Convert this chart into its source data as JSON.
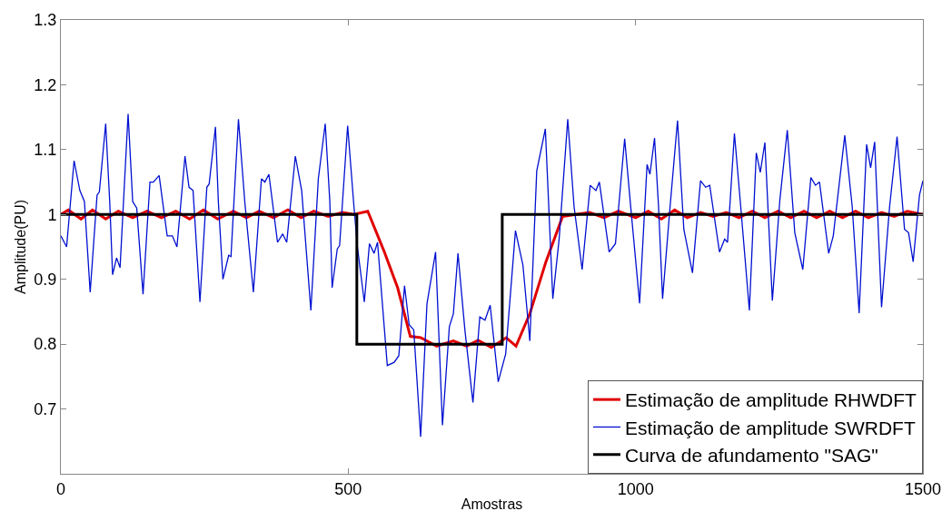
{
  "chart_data": {
    "type": "line",
    "xlabel": "Amostras",
    "ylabel": "Amplitude(PU)",
    "xlim": [
      0,
      1500
    ],
    "xticks": [
      0,
      500,
      1000,
      1500
    ],
    "ylim": [
      0.6,
      1.3
    ],
    "yticks": [
      0.7,
      0.8,
      0.9,
      1,
      1.1,
      1.2,
      1.3
    ],
    "legend": "bottom right",
    "marker": "none",
    "line_style": "solid",
    "series": [
      {
        "name": "Estimação de amplitude RHWDFT",
        "color": "#e00000",
        "x": [
          0,
          13,
          35,
          55,
          78,
          100,
          125,
          150,
          175,
          200,
          224,
          248,
          273,
          300,
          323,
          345,
          370,
          395,
          418,
          440,
          465,
          490,
          510,
          534,
          563,
          586,
          608,
          626,
          654,
          683,
          706,
          726,
          749,
          775,
          792,
          816,
          844,
          873,
          896,
          920,
          945,
          970,
          1000,
          1022,
          1045,
          1068,
          1090,
          1113,
          1135,
          1158,
          1180,
          1203,
          1225,
          1248,
          1270,
          1293,
          1315,
          1338,
          1360,
          1383,
          1405,
          1428,
          1450,
          1473,
          1500
        ],
        "values": [
          1.0,
          1.007,
          0.993,
          1.007,
          0.993,
          1.005,
          0.995,
          1.005,
          0.995,
          1.005,
          0.993,
          1.007,
          0.993,
          1.005,
          0.995,
          1.005,
          0.995,
          1.007,
          0.995,
          1.005,
          0.997,
          1.003,
          1.0,
          1.005,
          0.942,
          0.887,
          0.812,
          0.81,
          0.797,
          0.805,
          0.797,
          0.806,
          0.795,
          0.81,
          0.797,
          0.847,
          0.927,
          0.997,
          1.0,
          1.003,
          0.995,
          1.005,
          0.995,
          1.005,
          0.993,
          1.007,
          0.995,
          1.003,
          0.997,
          1.003,
          0.995,
          1.005,
          0.995,
          1.005,
          0.995,
          1.005,
          0.995,
          1.005,
          0.995,
          1.005,
          0.995,
          1.003,
          0.997,
          1.005,
          1.0
        ]
      },
      {
        "name": "Estimação de amplitude SWRDFT",
        "color": "#0010d0",
        "x": [
          0,
          10,
          23,
          33,
          41,
          51,
          63,
          67,
          78,
          85,
          90,
          97,
          103,
          117,
          125,
          132,
          143,
          155,
          161,
          171,
          185,
          194,
          202,
          216,
          223,
          230,
          242,
          254,
          258,
          269,
          274,
          282,
          292,
          296,
          309,
          320,
          335,
          349,
          355,
          362,
          377,
          386,
          393,
          408,
          419,
          435,
          448,
          460,
          468,
          472,
          481,
          485,
          499,
          510,
          516,
          528,
          537,
          545,
          551,
          568,
          580,
          588,
          598,
          606,
          614,
          626,
          637,
          652,
          664,
          676,
          683,
          691,
          703,
          717,
          729,
          738,
          747,
          761,
          774,
          791,
          804,
          816,
          828,
          843,
          856,
          867,
          882,
          893,
          907,
          921,
          931,
          937,
          954,
          965,
          981,
          991,
          1007,
          1020,
          1025,
          1033,
          1040,
          1047,
          1060,
          1073,
          1084,
          1099,
          1113,
          1122,
          1129,
          1146,
          1155,
          1160,
          1172,
          1183,
          1198,
          1210,
          1217,
          1225,
          1238,
          1251,
          1264,
          1277,
          1291,
          1305,
          1313,
          1320,
          1336,
          1344,
          1364,
          1377,
          1389,
          1402,
          1409,
          1416,
          1428,
          1442,
          1455,
          1468,
          1475,
          1483,
          1494,
          1500
        ],
        "values": [
          0.967,
          0.95,
          1.083,
          1.037,
          1.02,
          0.88,
          1.03,
          1.035,
          1.14,
          1.02,
          0.907,
          0.933,
          0.918,
          1.155,
          1.02,
          1.01,
          0.877,
          1.05,
          1.05,
          1.06,
          0.967,
          0.967,
          0.95,
          1.09,
          1.042,
          1.037,
          0.865,
          1.042,
          1.047,
          1.135,
          1.02,
          0.9,
          0.937,
          0.935,
          1.147,
          1.02,
          0.88,
          1.055,
          1.05,
          1.062,
          0.957,
          0.97,
          0.957,
          1.09,
          1.037,
          0.852,
          1.055,
          1.14,
          1.02,
          0.887,
          0.947,
          0.952,
          1.137,
          1.012,
          0.95,
          0.865,
          0.955,
          0.94,
          0.957,
          0.767,
          0.772,
          0.782,
          0.89,
          0.83,
          0.822,
          0.657,
          0.862,
          0.942,
          0.675,
          0.827,
          0.847,
          0.94,
          0.822,
          0.71,
          0.842,
          0.837,
          0.86,
          0.742,
          0.785,
          0.975,
          0.922,
          0.805,
          1.067,
          1.132,
          0.87,
          0.962,
          1.147,
          1.012,
          0.915,
          1.045,
          1.037,
          1.05,
          0.942,
          0.955,
          1.117,
          1.017,
          0.863,
          1.077,
          1.062,
          1.118,
          1.012,
          0.87,
          1.012,
          1.145,
          0.977,
          0.91,
          1.052,
          1.042,
          1.045,
          0.942,
          0.962,
          0.957,
          1.125,
          1.012,
          0.852,
          1.095,
          1.065,
          1.111,
          0.867,
          1.022,
          1.13,
          0.972,
          0.915,
          1.057,
          1.045,
          1.05,
          0.94,
          0.967,
          1.122,
          1.012,
          0.848,
          1.108,
          1.072,
          1.112,
          0.857,
          1.012,
          1.12,
          0.977,
          0.972,
          0.927,
          1.03,
          1.052
        ]
      },
      {
        "name": "Curva de afundamento \"SAG\"",
        "color": "#000000",
        "x": [
          0,
          515,
          515,
          768,
          768,
          1500
        ],
        "values": [
          1.0,
          1.0,
          0.8,
          0.8,
          1.0,
          1.0
        ]
      }
    ]
  }
}
